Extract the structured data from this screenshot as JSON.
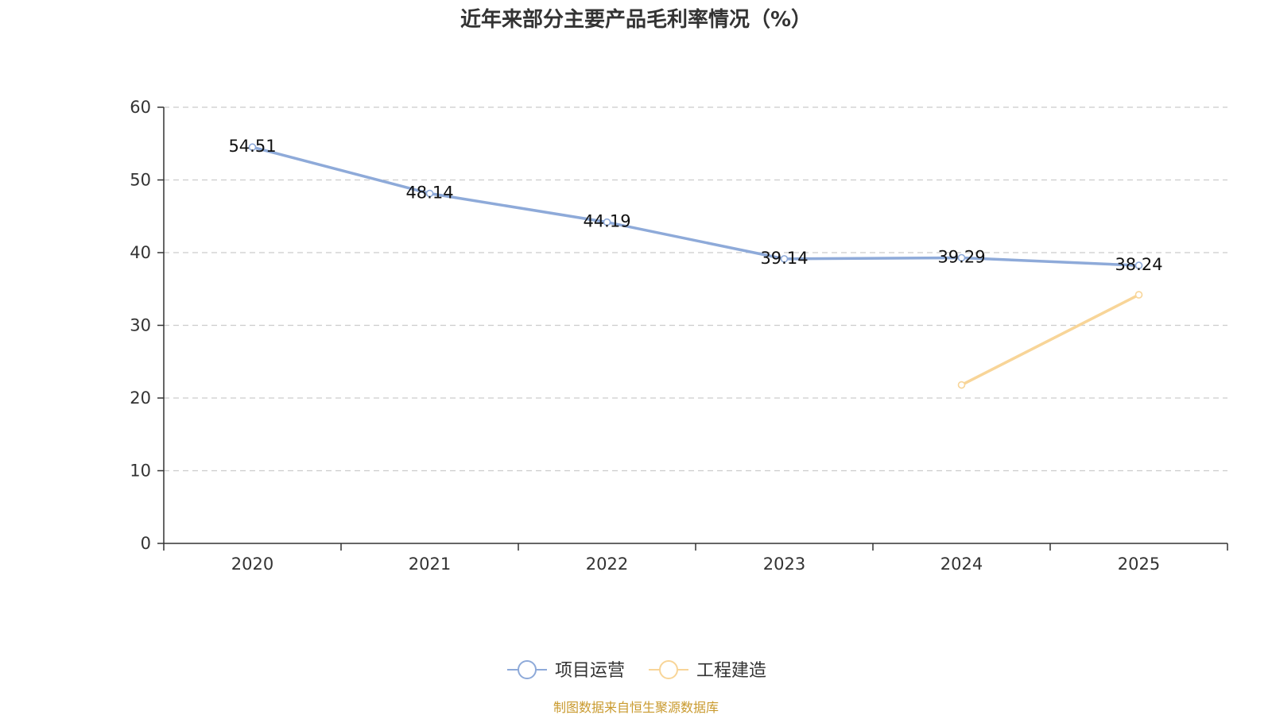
{
  "chart_data": {
    "type": "line",
    "title": "近年来部分主要产品毛利率情况（%）",
    "xlabel": "",
    "ylabel": "",
    "categories": [
      "2020",
      "2021",
      "2022",
      "2023",
      "2024",
      "2025"
    ],
    "ylim": [
      0,
      60
    ],
    "yticks": [
      0,
      10,
      20,
      30,
      40,
      50,
      60
    ],
    "grid": true,
    "legend_position": "bottom",
    "series": [
      {
        "name": "项目运营",
        "color": "#8eaad9",
        "values": [
          54.51,
          48.14,
          44.19,
          39.14,
          39.29,
          38.24
        ],
        "labels": [
          "54.51",
          "48.14",
          "44.19",
          "39.14",
          "39.29",
          "38.24"
        ]
      },
      {
        "name": "工程建造",
        "color": "#f8d598",
        "values": [
          null,
          null,
          null,
          null,
          21.8,
          34.2
        ],
        "labels": null
      }
    ],
    "source": "制图数据来自恒生聚源数据库"
  }
}
